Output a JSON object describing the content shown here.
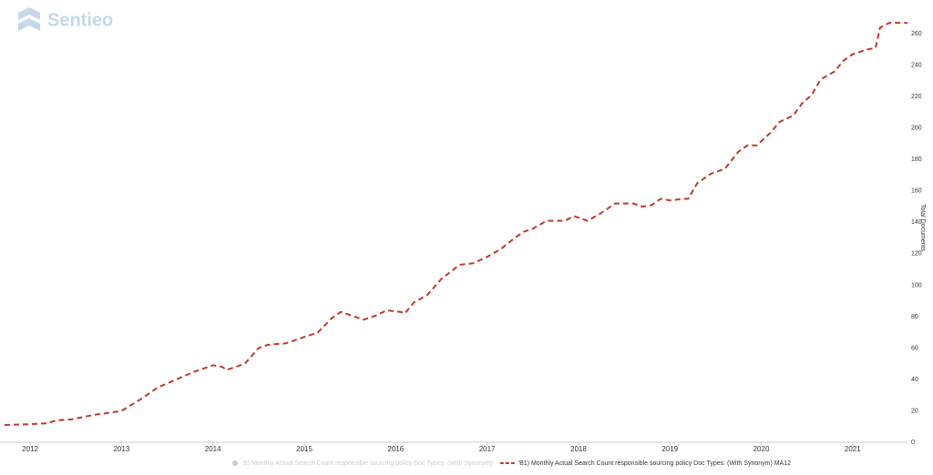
{
  "watermark": "Sentieo",
  "chart_data": {
    "type": "line",
    "y_axis_label": "Total Documents",
    "xlim": [
      2011.72,
      2021.62
    ],
    "xticks": [
      2012,
      2013,
      2014,
      2015,
      2016,
      2017,
      2018,
      2019,
      2020,
      2021
    ],
    "ylim": [
      0,
      270
    ],
    "yticks": [
      0,
      20,
      40,
      60,
      80,
      100,
      120,
      140,
      160,
      180,
      200,
      220,
      240,
      260
    ],
    "legend_position": "bottom",
    "legend_items": [
      {
        "name": "B) Monthly Actual Search Count responsible sourcing policy Doc Types: (With Synonym)",
        "color": "#cccccc",
        "hidden": true
      }
    ],
    "series": [
      {
        "name": "'B1) Monthly Actual Search Count responsible sourcing policy Doc Types: (With Synonym) MA12",
        "color": "#c0392b",
        "dashed": true,
        "x": [
          2011.72,
          2012.0,
          2012.17,
          2012.3,
          2012.45,
          2012.7,
          2012.9,
          2013.0,
          2013.2,
          2013.4,
          2013.6,
          2013.8,
          2014.0,
          2014.1,
          2014.15,
          2014.3,
          2014.35,
          2014.5,
          2014.6,
          2014.8,
          2015.0,
          2015.15,
          2015.3,
          2015.4,
          2015.5,
          2015.65,
          2015.8,
          2015.9,
          2016.05,
          2016.1,
          2016.2,
          2016.35,
          2016.5,
          2016.7,
          2016.85,
          2017.0,
          2017.15,
          2017.3,
          2017.4,
          2017.5,
          2017.65,
          2017.85,
          2017.95,
          2018.05,
          2018.1,
          2018.25,
          2018.4,
          2018.5,
          2018.6,
          2018.7,
          2018.8,
          2018.9,
          2019.0,
          2019.15,
          2019.2,
          2019.3,
          2019.45,
          2019.6,
          2019.75,
          2019.85,
          2019.95,
          2020.1,
          2020.2,
          2020.35,
          2020.45,
          2020.55,
          2020.65,
          2020.8,
          2020.9,
          2021.0,
          2021.1,
          2021.15,
          2021.25,
          2021.3,
          2021.4,
          2021.6
        ],
        "values": [
          11,
          11.5,
          12,
          14,
          14.5,
          17.5,
          19,
          20,
          27,
          35,
          40,
          45,
          49,
          48,
          46,
          49,
          50,
          60,
          62,
          63,
          67,
          70,
          79,
          83,
          81,
          78,
          81,
          84,
          83,
          82,
          89,
          94,
          104,
          113,
          114,
          118,
          123,
          130,
          134,
          136,
          141,
          141,
          144,
          142,
          141,
          146,
          152,
          152,
          152,
          150,
          151,
          155,
          154,
          155,
          155,
          165,
          171,
          174,
          185,
          189,
          189,
          197,
          204,
          208,
          216,
          221,
          231,
          236,
          243,
          247,
          249,
          250,
          251,
          264,
          267,
          267
        ]
      }
    ]
  }
}
